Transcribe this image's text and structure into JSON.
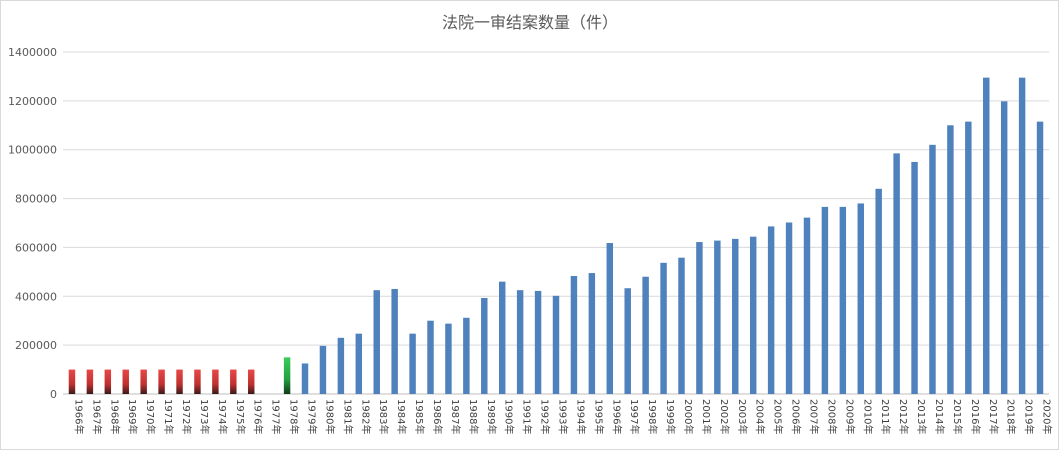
{
  "chart_data": {
    "type": "bar",
    "title": "法院一审结案数量（件）",
    "xlabel": "",
    "ylabel": "",
    "ylim": [
      0,
      1400000
    ],
    "yticks": [
      0,
      200000,
      400000,
      600000,
      800000,
      1000000,
      1200000,
      1400000
    ],
    "grid": true,
    "legend": "none",
    "colors": {
      "default": "#4F81BD",
      "estimated": "#E04040",
      "highlight": "#2EB84E",
      "grid": "#d9d9d9",
      "axis": "#bfbfbf"
    },
    "categories": [
      "1966年",
      "1967年",
      "1968年",
      "1969年",
      "1970年",
      "1971年",
      "1972年",
      "1973年",
      "1974年",
      "1975年",
      "1976年",
      "1977年",
      "1978年",
      "1979年",
      "1980年",
      "1981年",
      "1982年",
      "1983年",
      "1984年",
      "1985年",
      "1986年",
      "1987年",
      "1988年",
      "1989年",
      "1990年",
      "1991年",
      "1992年",
      "1993年",
      "1994年",
      "1995年",
      "1996年",
      "1997年",
      "1998年",
      "1999年",
      "2000年",
      "2001年",
      "2002年",
      "2003年",
      "2004年",
      "2005年",
      "2006年",
      "2007年",
      "2008年",
      "2009年",
      "2010年",
      "2011年",
      "2012年",
      "2013年",
      "2014年",
      "2015年",
      "2016年",
      "2017年",
      "2018年",
      "2019年",
      "2020年"
    ],
    "values": [
      100000,
      100000,
      100000,
      100000,
      100000,
      100000,
      100000,
      100000,
      100000,
      100000,
      100000,
      0,
      150000,
      125000,
      197000,
      230000,
      247000,
      425000,
      430000,
      247000,
      300000,
      288000,
      312000,
      393000,
      460000,
      425000,
      422000,
      402000,
      483000,
      495000,
      618000,
      433000,
      480000,
      537000,
      558000,
      622000,
      628000,
      635000,
      644000,
      686000,
      702000,
      722000,
      766000,
      766000,
      780000,
      840000,
      985000,
      950000,
      1020000,
      1100000,
      1115000,
      1295000,
      1198000,
      1295000,
      1115000
    ],
    "bar_styles": [
      "estimated",
      "estimated",
      "estimated",
      "estimated",
      "estimated",
      "estimated",
      "estimated",
      "estimated",
      "estimated",
      "estimated",
      "estimated",
      "default",
      "highlight",
      "default",
      "default",
      "default",
      "default",
      "default",
      "default",
      "default",
      "default",
      "default",
      "default",
      "default",
      "default",
      "default",
      "default",
      "default",
      "default",
      "default",
      "default",
      "default",
      "default",
      "default",
      "default",
      "default",
      "default",
      "default",
      "default",
      "default",
      "default",
      "default",
      "default",
      "default",
      "default",
      "default",
      "default",
      "default",
      "default",
      "default",
      "default",
      "default",
      "default",
      "default",
      "default"
    ]
  }
}
